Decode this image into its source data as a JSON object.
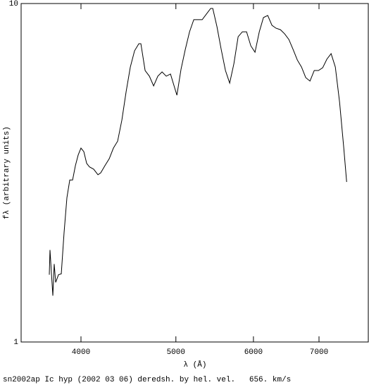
{
  "chart_data": {
    "type": "line",
    "title": "sn2002ap Ic hyp (2002 03 06) deredsh. by hel. vel.   656. km/s",
    "xlabel": "λ (Å)",
    "ylabel": "fλ (arbitrary units)",
    "xscale": "log",
    "yscale": "log",
    "xlim": [
      3475,
      7860
    ],
    "ylim": [
      1,
      10
    ],
    "xticks": [
      4000,
      5000,
      6000,
      7000
    ],
    "yticks": [
      1,
      10
    ],
    "series": [
      {
        "name": "sn2002ap",
        "color": "#000000",
        "x": [
          3713,
          3719,
          3744,
          3756,
          3769,
          3794,
          3819,
          3844,
          3870,
          3896,
          3922,
          3948,
          3974,
          4000,
          4027,
          4054,
          4081,
          4121,
          4163,
          4190,
          4232,
          4275,
          4317,
          4360,
          4404,
          4448,
          4492,
          4537,
          4583,
          4605,
          4651,
          4698,
          4745,
          4792,
          4840,
          4888,
          4937,
          4987,
          5012,
          5061,
          5112,
          5163,
          5215,
          5267,
          5319,
          5372,
          5426,
          5453,
          5507,
          5562,
          5618,
          5674,
          5731,
          5788,
          5846,
          5904,
          5963,
          6022,
          6083,
          6143,
          6205,
          6267,
          6329,
          6393,
          6456,
          6521,
          6586,
          6652,
          6718,
          6785,
          6853,
          6922,
          6991,
          7061,
          7131,
          7202,
          7274,
          7347,
          7420,
          7470
        ],
        "values": [
          1.58,
          1.87,
          1.37,
          1.7,
          1.5,
          1.58,
          1.59,
          2.1,
          2.67,
          3.01,
          3.01,
          3.32,
          3.57,
          3.74,
          3.65,
          3.37,
          3.29,
          3.24,
          3.12,
          3.16,
          3.32,
          3.48,
          3.74,
          3.92,
          4.53,
          5.49,
          6.49,
          7.25,
          7.61,
          7.61,
          6.34,
          6.1,
          5.71,
          6.1,
          6.28,
          6.1,
          6.19,
          5.62,
          5.36,
          6.4,
          7.32,
          8.25,
          8.96,
          8.96,
          8.96,
          9.31,
          9.67,
          9.67,
          8.54,
          7.32,
          6.34,
          5.82,
          6.65,
          7.98,
          8.25,
          8.25,
          7.5,
          7.18,
          8.25,
          9.09,
          9.22,
          8.62,
          8.45,
          8.37,
          8.14,
          7.83,
          7.32,
          6.81,
          6.49,
          6.04,
          5.9,
          6.34,
          6.34,
          6.46,
          6.85,
          7.11,
          6.49,
          5.11,
          3.74,
          2.97
        ]
      }
    ]
  }
}
